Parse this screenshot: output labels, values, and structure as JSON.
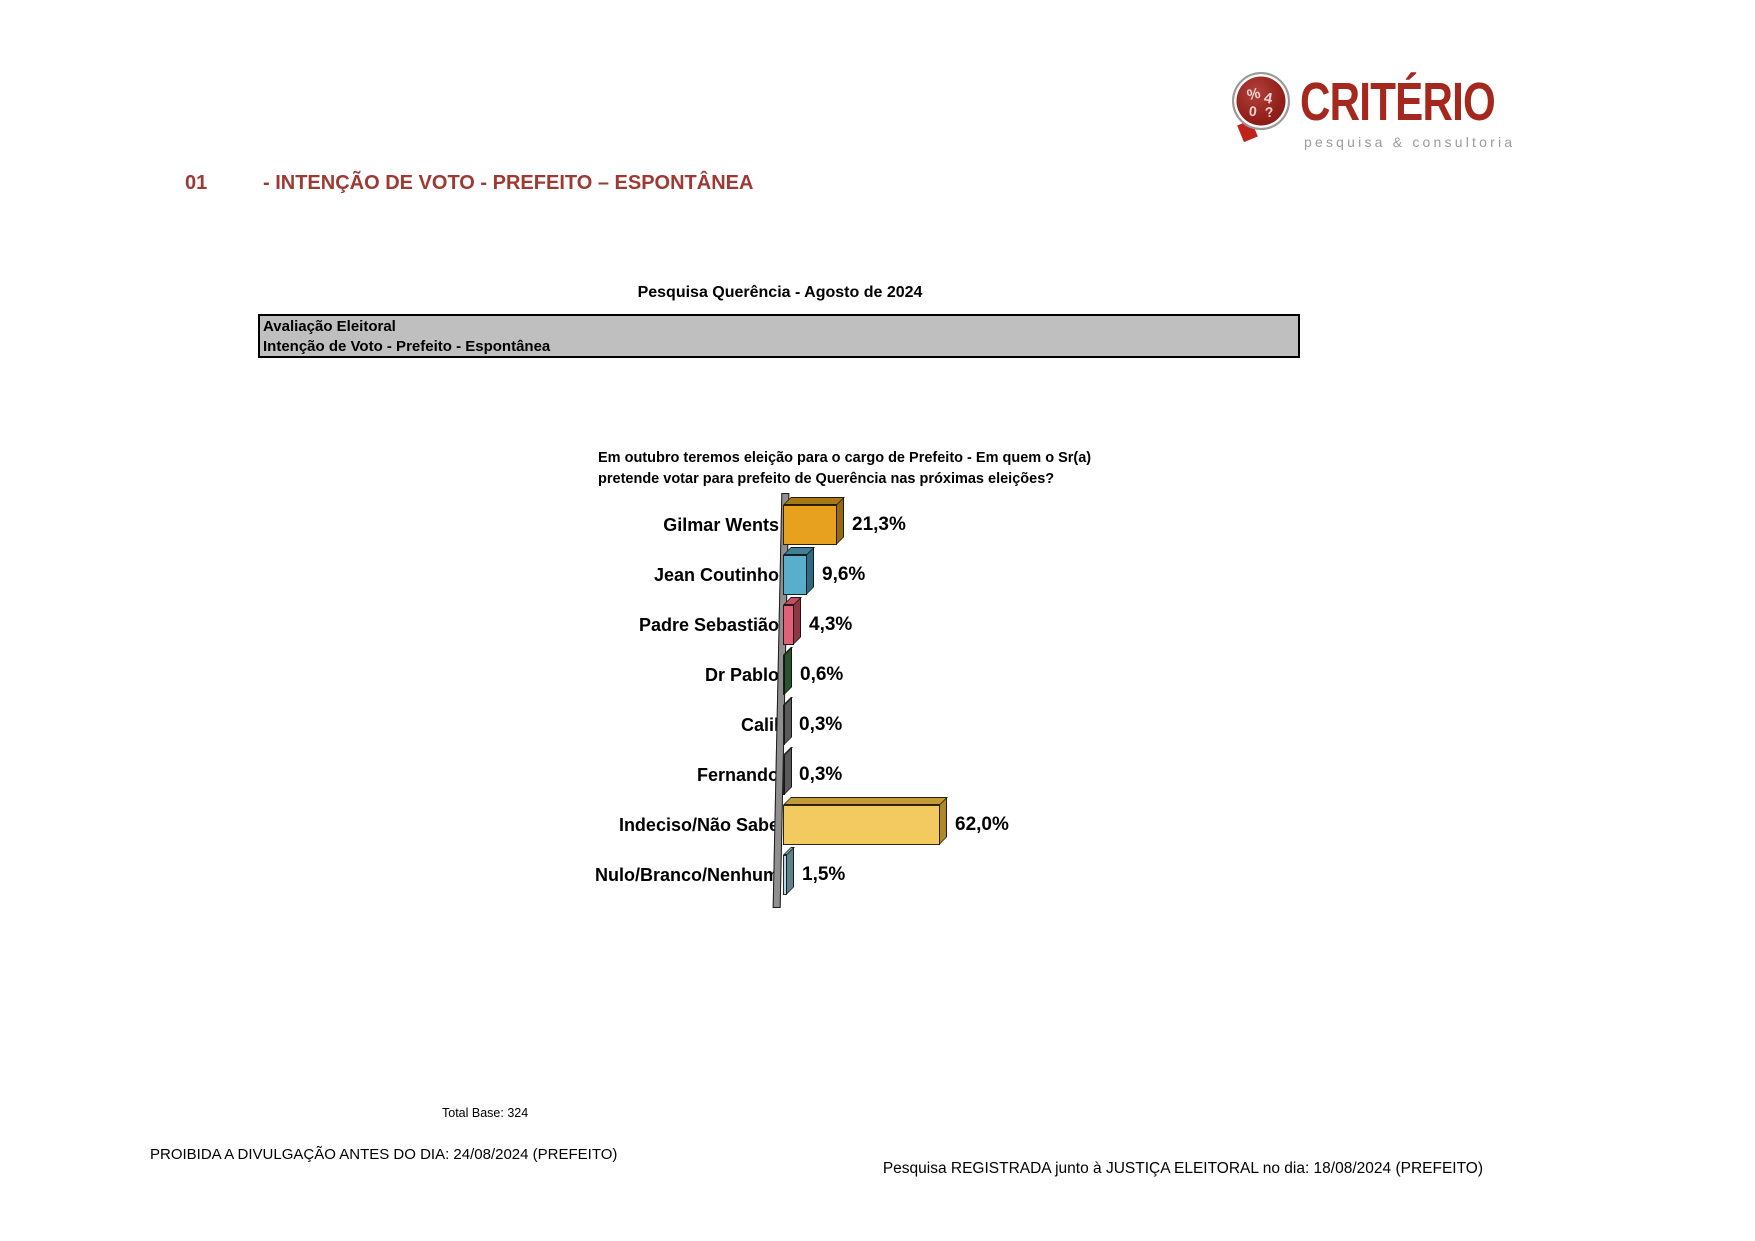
{
  "logo": {
    "brand": "CRITÉRIO",
    "tagline": "pesquisa & consultoria",
    "symbols": [
      "%",
      "4",
      "0",
      "?"
    ],
    "brand_color": "#a5281e",
    "tagline_color": "#9b9b9b"
  },
  "header": {
    "number": "01",
    "title": "- INTENÇÃO DE VOTO - PREFEITO – ESPONTÂNEA",
    "color": "#9c3a33"
  },
  "subtitle": "Pesquisa Querência - Agosto de 2024",
  "info_box": {
    "line1": "Avaliação Eleitoral",
    "line2": "Intenção de Voto - Prefeito - Espontânea"
  },
  "chart_data": {
    "type": "bar",
    "orientation": "horizontal",
    "style": "3d",
    "title_line1": "Em outubro teremos eleição para o cargo de Prefeito - Em quem o Sr(a)",
    "title_line2": "pretende votar para prefeito de Querência nas próximas eleições?",
    "categories": [
      "Gilmar Wents",
      "Jean Coutinho",
      "Padre Sebastião",
      "Dr Pablo",
      "Calil",
      "Fernando",
      "Indeciso/Não Sabe",
      "Nulo/Branco/Nenhum"
    ],
    "values": [
      21.3,
      9.6,
      4.3,
      0.6,
      0.3,
      0.3,
      62.0,
      1.5
    ],
    "value_labels": [
      "21,3%",
      "9,6%",
      "4,3%",
      "0,6%",
      "0,3%",
      "0,3%",
      "62,0%",
      "1,5%"
    ],
    "colors": [
      {
        "front": "#e8a11e",
        "top": "#a87815",
        "side": "#96690f"
      },
      {
        "front": "#58aecb",
        "top": "#417f96",
        "side": "#2e6b80"
      },
      {
        "front": "#e16079",
        "top": "#c04f63",
        "side": "#8b3844"
      },
      {
        "front": "#4a8a50",
        "top": "#35693b",
        "side": "#29522e"
      },
      {
        "front": "#8f8f8f",
        "top": "#6e6e6e",
        "side": "#5a5a5a"
      },
      {
        "front": "#8f8f8f",
        "top": "#6e6e6e",
        "side": "#5a5a5a"
      },
      {
        "front": "#f3ca60",
        "top": "#c39a33",
        "side": "#ae872b"
      },
      {
        "front": "#b5d9e0",
        "top": "#86a9b1",
        "side": "#5f828a"
      }
    ],
    "xlim": [
      0,
      65
    ],
    "axis_ticks": "none",
    "legend": "none",
    "grid": false
  },
  "total_base": "Total Base: 324",
  "footer": {
    "left": "PROIBIDA A DIVULGAÇÃO ANTES DO DIA: 24/08/2024 (PREFEITO)",
    "right": "Pesquisa REGISTRADA junto à JUSTIÇA ELEITORAL no dia: 18/08/2024 (PREFEITO)"
  }
}
